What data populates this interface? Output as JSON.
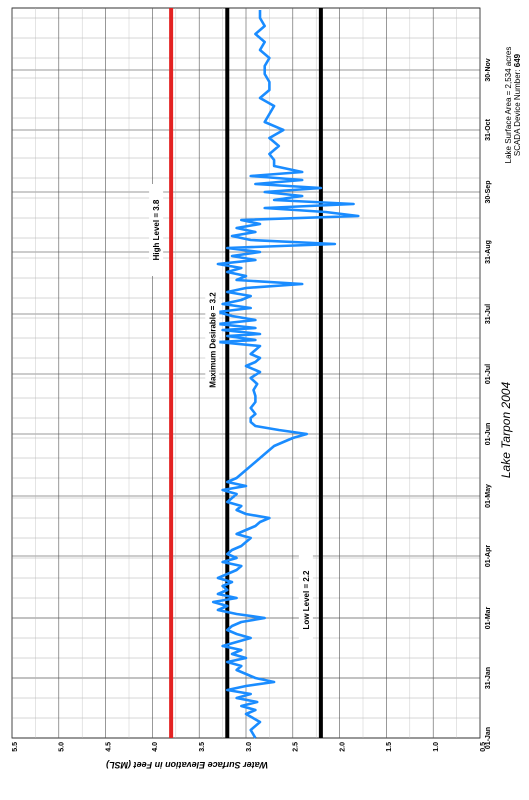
{
  "chart_data": {
    "type": "line",
    "title": "Lake Tarpon  2004",
    "ylabel": "Water Surface Elevation in Feet (MSL)",
    "ylim": [
      0.5,
      5.5
    ],
    "y_ticks": [
      "5.5",
      "5.0",
      "4.5",
      "4.0",
      "3.5",
      "3.0",
      "2.5",
      "2.0",
      "1.5",
      "1.0",
      "0.5"
    ],
    "x_ticks": [
      {
        "label": "01-Jan",
        "day": 0
      },
      {
        "label": "31-Jan",
        "day": 30
      },
      {
        "label": "01-Mar",
        "day": 60
      },
      {
        "label": "01-Apr",
        "day": 91
      },
      {
        "label": "01-May",
        "day": 121
      },
      {
        "label": "01-Jun",
        "day": 152
      },
      {
        "label": "01-Jul",
        "day": 182
      },
      {
        "label": "31-Jul",
        "day": 212
      },
      {
        "label": "31-Aug",
        "day": 243
      },
      {
        "label": "30-Sep",
        "day": 273
      },
      {
        "label": "31-Oct",
        "day": 304
      },
      {
        "label": "30-Nov",
        "day": 334
      }
    ],
    "xlim_days": [
      0,
      365
    ],
    "reference_lines": [
      {
        "label": "High Level = 3.8",
        "value": 3.8,
        "color": "#e32222"
      },
      {
        "label": "Maximum Desirable = 3.2",
        "value": 3.2,
        "color": "#000000"
      },
      {
        "label": "Low Level = 2.2",
        "value": 2.2,
        "color": "#000000"
      }
    ],
    "series": [
      {
        "color": "#1a8cff",
        "x": [
          0,
          4,
          8,
          12,
          14,
          16,
          18,
          20,
          22,
          24,
          26,
          28,
          30,
          32,
          34,
          36,
          38,
          40,
          42,
          44,
          46,
          48,
          50,
          52,
          54,
          56,
          58,
          60,
          62,
          64,
          66,
          68,
          70,
          72,
          74,
          76,
          78,
          80,
          82,
          84,
          86,
          88,
          90,
          92,
          94,
          96,
          98,
          100,
          102,
          104,
          106,
          108,
          110,
          112,
          114,
          116,
          118,
          120,
          122,
          124,
          126,
          128,
          130,
          134,
          138,
          142,
          146,
          148,
          150,
          152,
          154,
          156,
          158,
          160,
          162,
          165,
          168,
          171,
          174,
          177,
          180,
          183,
          186,
          188,
          190,
          192,
          194,
          196,
          198,
          199,
          201,
          202,
          204,
          205,
          207,
          209,
          211,
          213,
          215,
          217,
          219,
          221,
          223,
          225,
          227,
          229,
          231,
          233,
          235,
          237,
          239,
          241,
          243,
          245,
          247,
          249,
          251,
          253,
          255,
          257,
          259,
          261,
          263,
          265,
          267,
          269,
          271,
          273,
          275,
          277,
          279,
          281,
          283,
          286,
          289,
          292,
          296,
          300,
          304,
          308,
          312,
          316,
          320,
          324,
          328,
          332,
          336,
          340,
          344,
          348,
          352,
          356,
          360,
          364
        ],
        "values": [
          2.9,
          2.95,
          2.85,
          3.0,
          2.9,
          3.05,
          2.88,
          3.1,
          2.95,
          3.2,
          3.0,
          2.7,
          2.9,
          3.0,
          3.1,
          3.05,
          3.2,
          3.0,
          3.15,
          3.05,
          3.25,
          3.1,
          2.95,
          3.1,
          3.2,
          3.15,
          3.05,
          2.8,
          3.1,
          3.3,
          3.2,
          3.35,
          3.1,
          3.3,
          3.2,
          3.25,
          3.15,
          3.3,
          3.2,
          3.1,
          3.05,
          3.25,
          3.1,
          3.2,
          3.15,
          3.05,
          3.0,
          2.95,
          3.1,
          3.0,
          2.9,
          2.85,
          2.75,
          3.0,
          3.1,
          3.05,
          3.2,
          3.15,
          3.1,
          3.25,
          3.0,
          3.2,
          3.1,
          3.0,
          2.9,
          2.8,
          2.7,
          2.6,
          2.5,
          2.35,
          2.65,
          2.9,
          2.95,
          2.95,
          2.9,
          2.95,
          2.9,
          2.9,
          2.92,
          2.88,
          2.95,
          2.85,
          3.0,
          2.9,
          2.85,
          2.95,
          2.9,
          2.85,
          3.3,
          2.9,
          3.2,
          2.85,
          3.25,
          2.9,
          3.3,
          2.9,
          3.15,
          3.3,
          2.95,
          3.25,
          3.05,
          2.95,
          3.2,
          3.0,
          2.4,
          3.1,
          3.0,
          3.2,
          3.05,
          3.3,
          2.9,
          3.15,
          2.85,
          3.2,
          2.05,
          2.95,
          3.15,
          2.9,
          3.1,
          2.85,
          3.05,
          1.8,
          2.15,
          2.8,
          1.85,
          2.7,
          2.4,
          2.8,
          2.2,
          2.9,
          2.4,
          2.95,
          2.4,
          2.7,
          2.7,
          2.75,
          2.65,
          2.75,
          2.6,
          2.8,
          2.75,
          2.7,
          2.85,
          2.75,
          2.75,
          2.8,
          2.8,
          2.75,
          2.85,
          2.8,
          2.9,
          2.8,
          2.85,
          2.85
        ]
      }
    ],
    "annotations": {
      "surface_area_label": "Lake Surface Area =   2,534 acres",
      "device_label": "SCADA Device Number:",
      "device_number": "649"
    }
  }
}
